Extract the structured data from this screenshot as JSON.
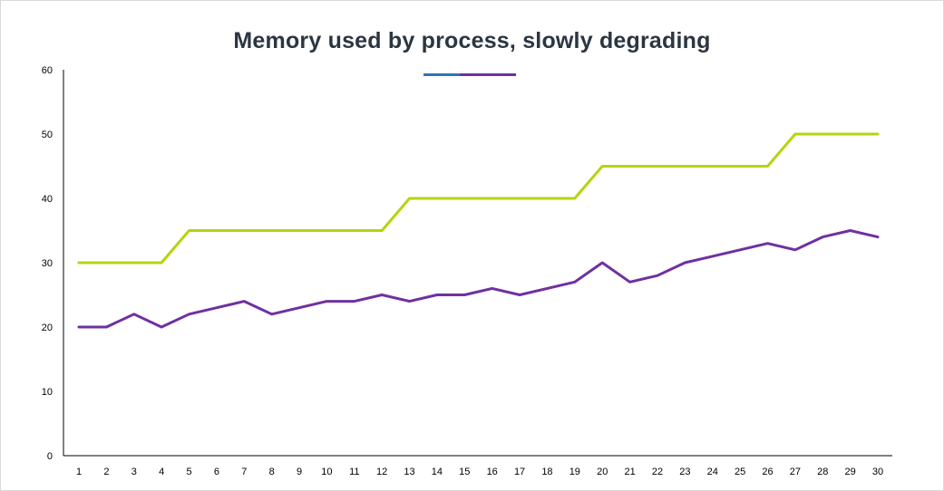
{
  "chart_data": {
    "type": "line",
    "title": "Memory used by process, slowly degrading",
    "xlabel": "",
    "ylabel": "",
    "x": [
      1,
      2,
      3,
      4,
      5,
      6,
      7,
      8,
      9,
      10,
      11,
      12,
      13,
      14,
      15,
      16,
      17,
      18,
      19,
      20,
      21,
      22,
      23,
      24,
      25,
      26,
      27,
      28,
      29,
      30
    ],
    "x_tick_labels": [
      "1",
      "2",
      "3",
      "4",
      "5",
      "6",
      "7",
      "8",
      "9",
      "10",
      "11",
      "12",
      "13",
      "14",
      "15",
      "16",
      "17",
      "18",
      "19",
      "20",
      "21",
      "22",
      "23",
      "24",
      "25",
      "26",
      "27",
      "28",
      "29",
      "30"
    ],
    "ylim": [
      0,
      60
    ],
    "y_ticks": [
      0,
      10,
      20,
      30,
      40,
      50,
      60
    ],
    "y_tick_labels": [
      "0",
      "10",
      "20",
      "30",
      "40",
      "50",
      "60"
    ],
    "grid": false,
    "legend_position": "top-center",
    "series": [
      {
        "color": "#b5d40f",
        "values": [
          30,
          30,
          30,
          30,
          35,
          35,
          35,
          35,
          35,
          35,
          35,
          35,
          40,
          40,
          40,
          40,
          40,
          40,
          40,
          45,
          45,
          45,
          45,
          45,
          45,
          45,
          50,
          50,
          50,
          50
        ]
      },
      {
        "color": "#7030a0",
        "values": [
          20,
          20,
          22,
          20,
          22,
          23,
          24,
          22,
          23,
          24,
          24,
          25,
          24,
          25,
          25,
          26,
          25,
          26,
          27,
          30,
          27,
          28,
          30,
          31,
          32,
          33,
          32,
          34,
          35,
          34
        ]
      }
    ],
    "legend_swatches": [
      {
        "color": "#2e75b6"
      },
      {
        "color": "#7030a0"
      }
    ]
  }
}
